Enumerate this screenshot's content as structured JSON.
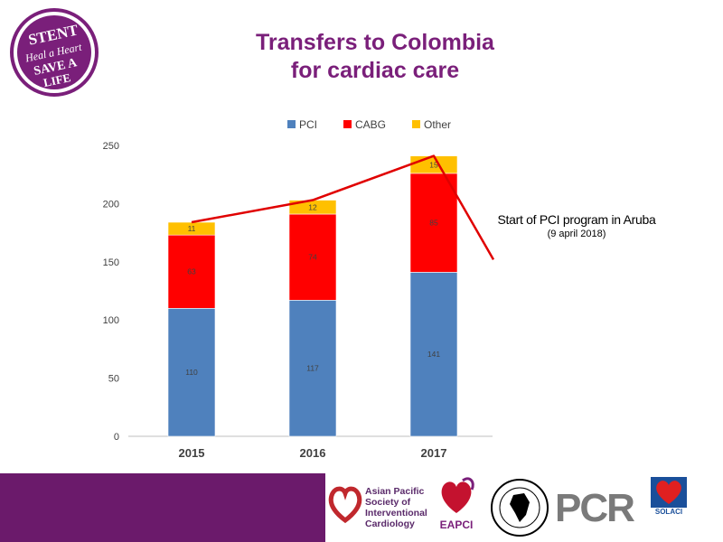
{
  "header": {
    "title_line1": "Transfers to Colombia",
    "title_line2": "for cardiac care",
    "badge_lines": [
      "STENT",
      "Heal a Heart",
      "SAVE A",
      "LIFE"
    ]
  },
  "chart_data": {
    "type": "bar",
    "stacked": true,
    "categories": [
      "2015",
      "2016",
      "2017"
    ],
    "series": [
      {
        "name": "PCI",
        "color": "#4f81bd",
        "values": [
          110,
          117,
          141
        ]
      },
      {
        "name": "CABG",
        "color": "#ff0000",
        "values": [
          63,
          74,
          85
        ]
      },
      {
        "name": "Other",
        "color": "#ffc000",
        "values": [
          11,
          12,
          15
        ]
      }
    ],
    "totals_line": {
      "color": "#e00000",
      "values": [
        184,
        203,
        241
      ],
      "end_value": 155
    },
    "ylim": [
      0,
      250
    ],
    "yticks": [
      0,
      50,
      100,
      150,
      200,
      250
    ],
    "legend_position": "top",
    "grid": false
  },
  "annotation": {
    "text": "Start of PCI program in Aruba",
    "date": "(9 april 2018)"
  },
  "footer": {
    "apsic": "Asian Pacific Society of Interventional Cardiology",
    "eapci": "EAPCI",
    "pcr": "PCR",
    "solaci": "SOLACI"
  }
}
